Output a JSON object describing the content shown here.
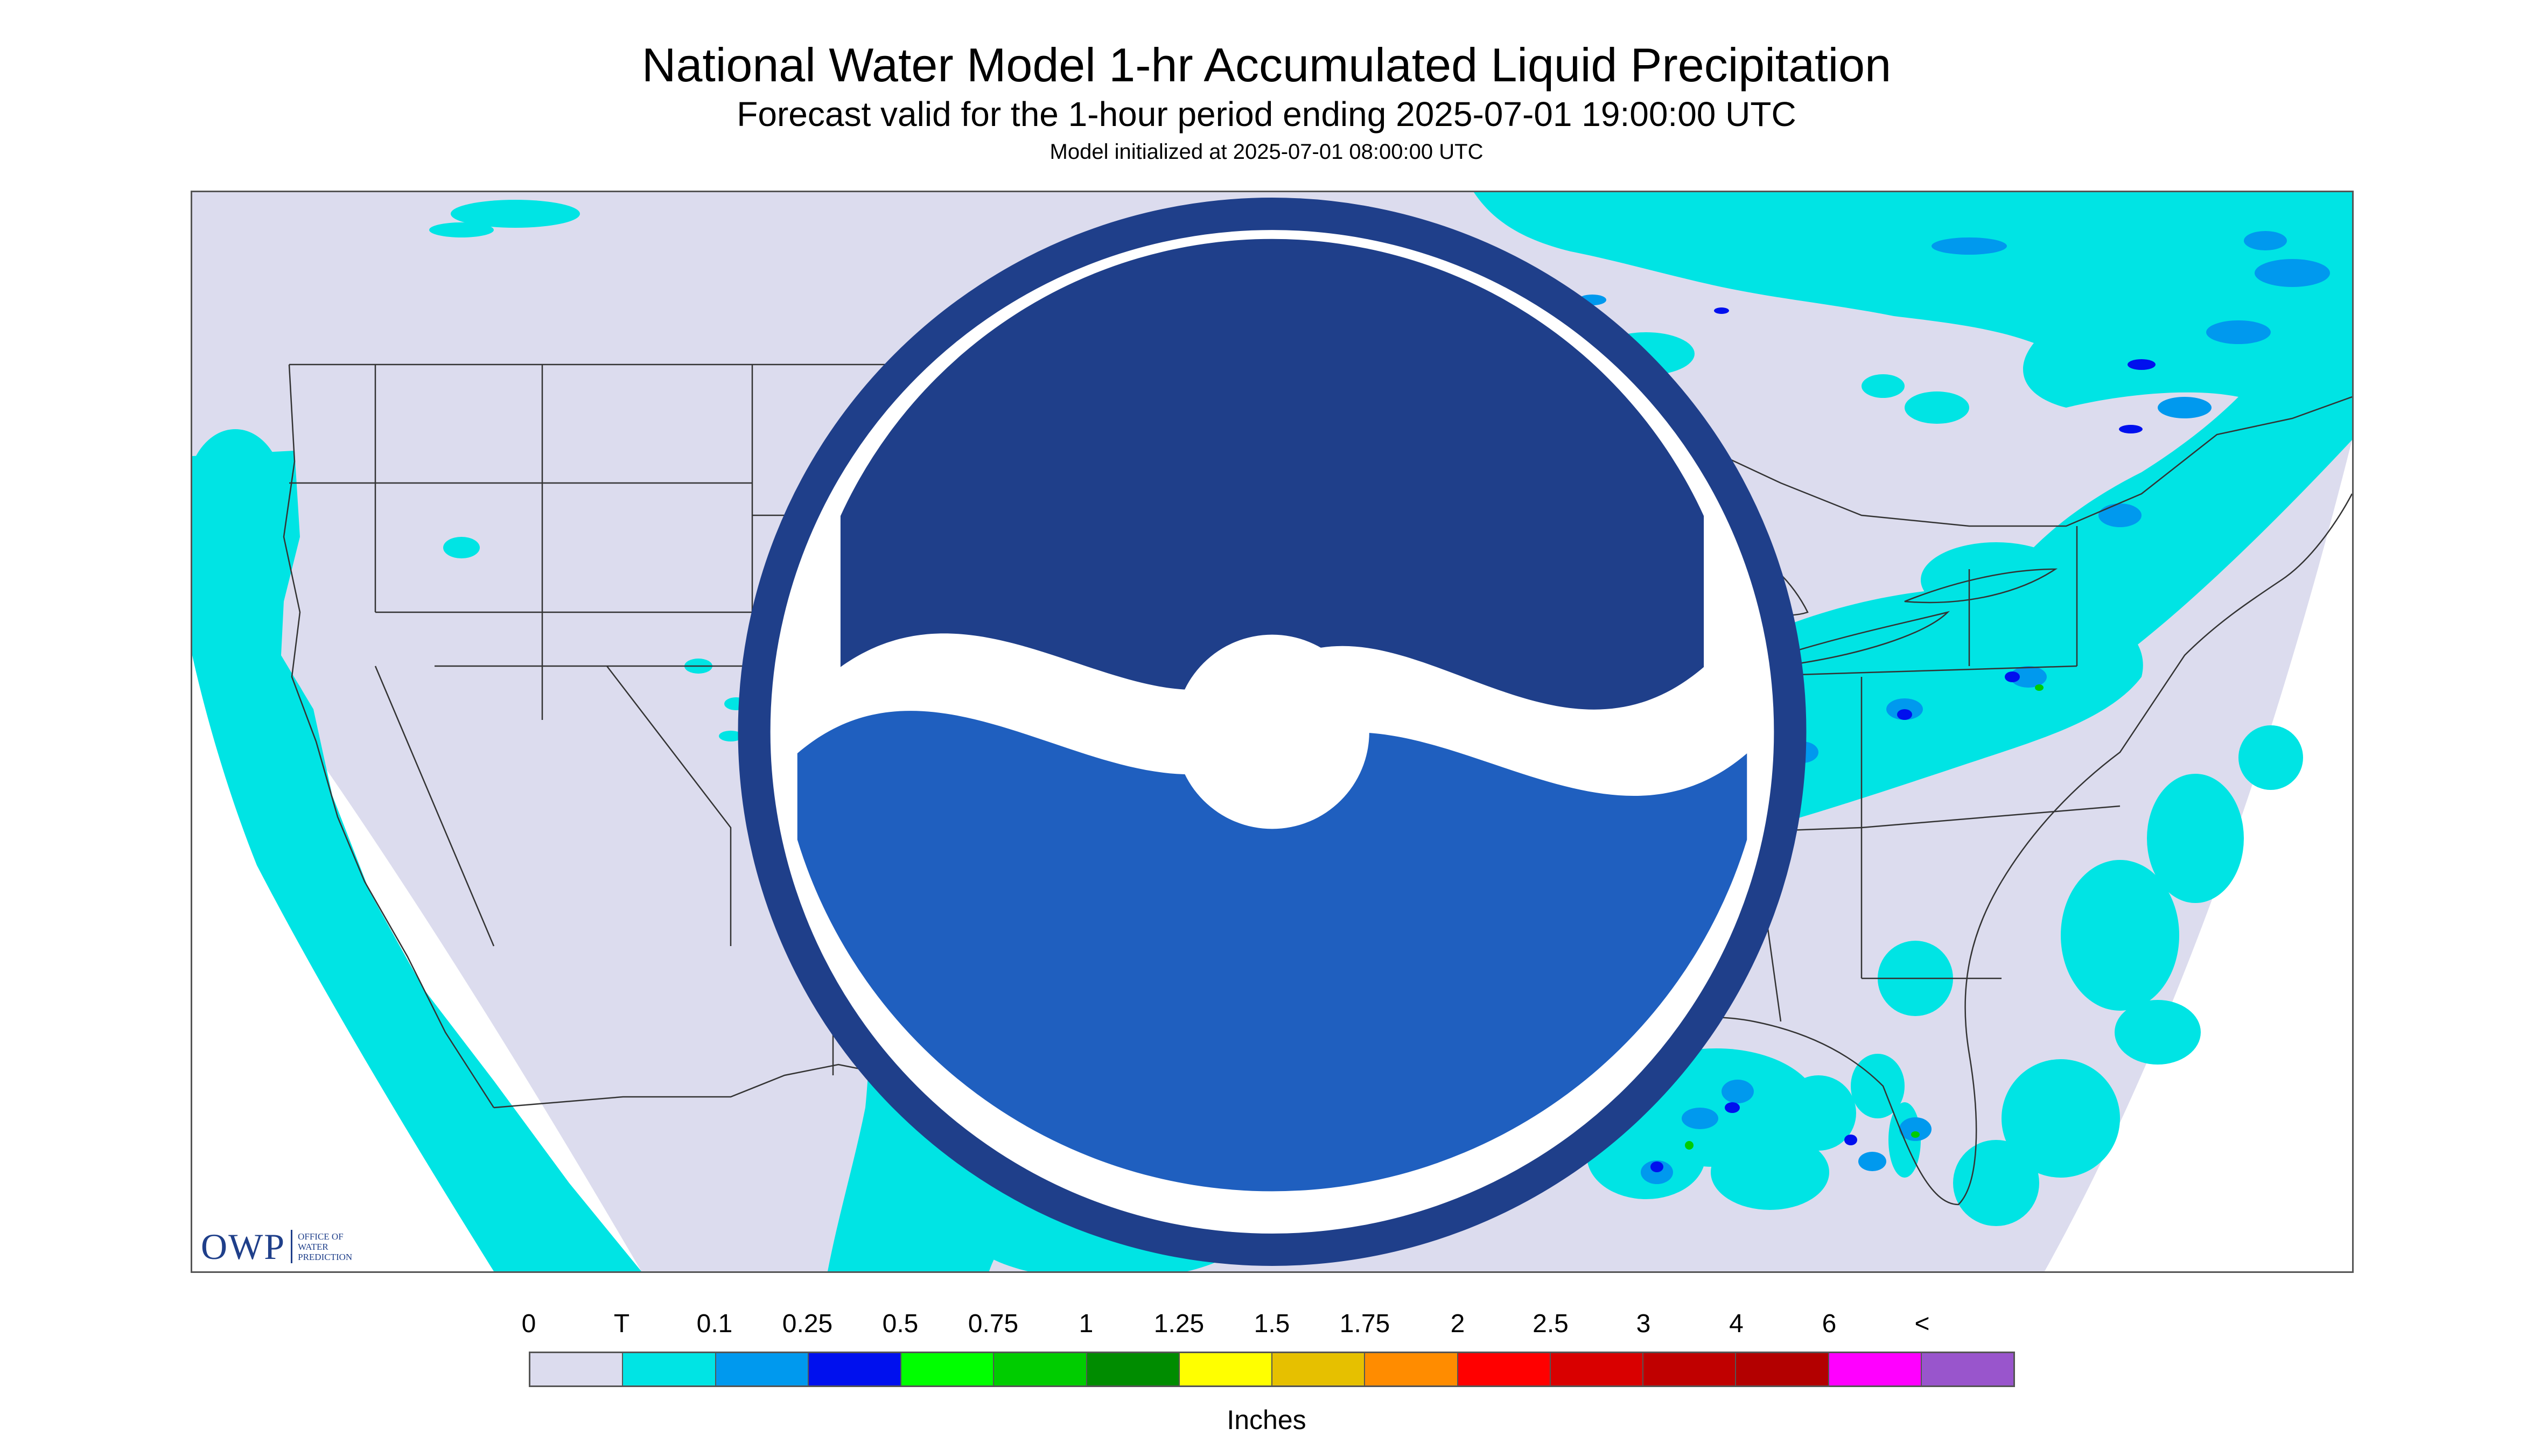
{
  "header": {
    "title": "National Water Model 1-hr Accumulated Liquid Precipitation",
    "subtitle": "Forecast valid for the 1-hour period ending 2025-07-01 19:00:00 UTC",
    "init_line": "Model initialized at 2025-07-01 08:00:00 UTC"
  },
  "map": {
    "region": "CONUS",
    "background_color": "#dcdcee",
    "outside_domain_color": "#ffffff",
    "boundary_color": "#333333",
    "precip_colors": {
      "trace": "#00e4e4",
      "light": "#0099ee",
      "moderate": "#0010ee",
      "heavy": "#00cc00"
    }
  },
  "logos": {
    "owp_mark": "OWP",
    "owp_text": "Office of Water Prediction",
    "noaa_icon": "noaa-emblem-icon"
  },
  "legend": {
    "labels": [
      "0",
      "T",
      "0.1",
      "0.25",
      "0.5",
      "0.75",
      "1",
      "1.25",
      "1.5",
      "1.75",
      "2",
      "2.5",
      "3",
      "4",
      "6",
      "<"
    ],
    "colors": [
      "#dcdcee",
      "#00e4e4",
      "#0099ee",
      "#0010ee",
      "#00ff00",
      "#00cc00",
      "#008c00",
      "#ffff00",
      "#e6c000",
      "#ff8c00",
      "#ff0000",
      "#d90000",
      "#c00000",
      "#b30000",
      "#ff00ff",
      "#9955cc"
    ],
    "units": "Inches"
  }
}
